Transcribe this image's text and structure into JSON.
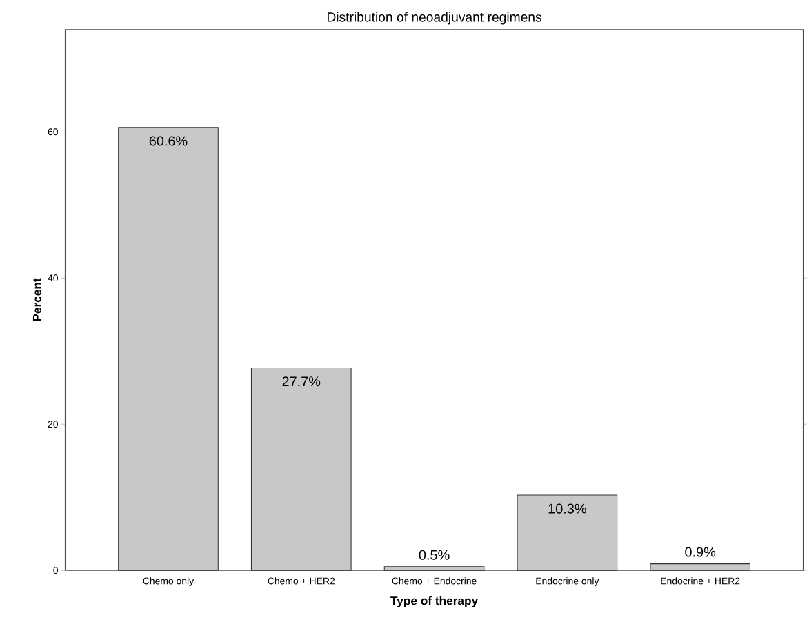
{
  "chart_data": {
    "type": "bar",
    "title": "Distribution of neoadjuvant regimens",
    "xlabel": "Type of therapy",
    "ylabel": "Percent",
    "categories": [
      "Chemo only",
      "Chemo + HER2",
      "Chemo + Endocrine",
      "Endocrine only",
      "Endocrine + HER2"
    ],
    "values": [
      60.6,
      27.7,
      0.5,
      10.3,
      0.9
    ],
    "value_labels": [
      "60.6%",
      "27.7%",
      "0.5%",
      "10.3%",
      "0.9%"
    ],
    "color": "#c8c8c8",
    "ylim": [
      0,
      74
    ],
    "yticks": [
      0,
      20,
      40,
      60
    ]
  }
}
